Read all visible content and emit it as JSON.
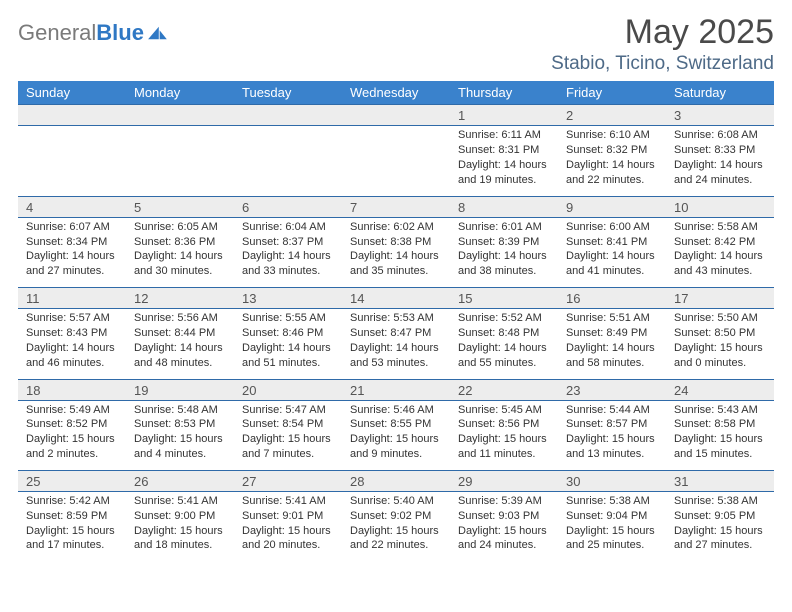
{
  "brand": {
    "general": "General",
    "blue": "Blue"
  },
  "title": "May 2025",
  "location": "Stabio, Ticino, Switzerland",
  "colors": {
    "header_bg": "#3a82cc",
    "header_text": "#ffffff",
    "daynum_bg": "#ededed",
    "row_divider": "#2f6aa8",
    "logo_gray": "#7a7a7a",
    "logo_blue": "#2f78c4",
    "location_color": "#4e6a87",
    "title_color": "#4a4a4a"
  },
  "fonts": {
    "body_family": "Arial",
    "detail_size_pt": 8,
    "title_size_pt": 26
  },
  "weekdays": [
    "Sunday",
    "Monday",
    "Tuesday",
    "Wednesday",
    "Thursday",
    "Friday",
    "Saturday"
  ],
  "weeks": [
    [
      null,
      null,
      null,
      null,
      {
        "d": "1",
        "sr": "6:11 AM",
        "ss": "8:31 PM",
        "dl": "14 hours and 19 minutes."
      },
      {
        "d": "2",
        "sr": "6:10 AM",
        "ss": "8:32 PM",
        "dl": "14 hours and 22 minutes."
      },
      {
        "d": "3",
        "sr": "6:08 AM",
        "ss": "8:33 PM",
        "dl": "14 hours and 24 minutes."
      }
    ],
    [
      {
        "d": "4",
        "sr": "6:07 AM",
        "ss": "8:34 PM",
        "dl": "14 hours and 27 minutes."
      },
      {
        "d": "5",
        "sr": "6:05 AM",
        "ss": "8:36 PM",
        "dl": "14 hours and 30 minutes."
      },
      {
        "d": "6",
        "sr": "6:04 AM",
        "ss": "8:37 PM",
        "dl": "14 hours and 33 minutes."
      },
      {
        "d": "7",
        "sr": "6:02 AM",
        "ss": "8:38 PM",
        "dl": "14 hours and 35 minutes."
      },
      {
        "d": "8",
        "sr": "6:01 AM",
        "ss": "8:39 PM",
        "dl": "14 hours and 38 minutes."
      },
      {
        "d": "9",
        "sr": "6:00 AM",
        "ss": "8:41 PM",
        "dl": "14 hours and 41 minutes."
      },
      {
        "d": "10",
        "sr": "5:58 AM",
        "ss": "8:42 PM",
        "dl": "14 hours and 43 minutes."
      }
    ],
    [
      {
        "d": "11",
        "sr": "5:57 AM",
        "ss": "8:43 PM",
        "dl": "14 hours and 46 minutes."
      },
      {
        "d": "12",
        "sr": "5:56 AM",
        "ss": "8:44 PM",
        "dl": "14 hours and 48 minutes."
      },
      {
        "d": "13",
        "sr": "5:55 AM",
        "ss": "8:46 PM",
        "dl": "14 hours and 51 minutes."
      },
      {
        "d": "14",
        "sr": "5:53 AM",
        "ss": "8:47 PM",
        "dl": "14 hours and 53 minutes."
      },
      {
        "d": "15",
        "sr": "5:52 AM",
        "ss": "8:48 PM",
        "dl": "14 hours and 55 minutes."
      },
      {
        "d": "16",
        "sr": "5:51 AM",
        "ss": "8:49 PM",
        "dl": "14 hours and 58 minutes."
      },
      {
        "d": "17",
        "sr": "5:50 AM",
        "ss": "8:50 PM",
        "dl": "15 hours and 0 minutes."
      }
    ],
    [
      {
        "d": "18",
        "sr": "5:49 AM",
        "ss": "8:52 PM",
        "dl": "15 hours and 2 minutes."
      },
      {
        "d": "19",
        "sr": "5:48 AM",
        "ss": "8:53 PM",
        "dl": "15 hours and 4 minutes."
      },
      {
        "d": "20",
        "sr": "5:47 AM",
        "ss": "8:54 PM",
        "dl": "15 hours and 7 minutes."
      },
      {
        "d": "21",
        "sr": "5:46 AM",
        "ss": "8:55 PM",
        "dl": "15 hours and 9 minutes."
      },
      {
        "d": "22",
        "sr": "5:45 AM",
        "ss": "8:56 PM",
        "dl": "15 hours and 11 minutes."
      },
      {
        "d": "23",
        "sr": "5:44 AM",
        "ss": "8:57 PM",
        "dl": "15 hours and 13 minutes."
      },
      {
        "d": "24",
        "sr": "5:43 AM",
        "ss": "8:58 PM",
        "dl": "15 hours and 15 minutes."
      }
    ],
    [
      {
        "d": "25",
        "sr": "5:42 AM",
        "ss": "8:59 PM",
        "dl": "15 hours and 17 minutes."
      },
      {
        "d": "26",
        "sr": "5:41 AM",
        "ss": "9:00 PM",
        "dl": "15 hours and 18 minutes."
      },
      {
        "d": "27",
        "sr": "5:41 AM",
        "ss": "9:01 PM",
        "dl": "15 hours and 20 minutes."
      },
      {
        "d": "28",
        "sr": "5:40 AM",
        "ss": "9:02 PM",
        "dl": "15 hours and 22 minutes."
      },
      {
        "d": "29",
        "sr": "5:39 AM",
        "ss": "9:03 PM",
        "dl": "15 hours and 24 minutes."
      },
      {
        "d": "30",
        "sr": "5:38 AM",
        "ss": "9:04 PM",
        "dl": "15 hours and 25 minutes."
      },
      {
        "d": "31",
        "sr": "5:38 AM",
        "ss": "9:05 PM",
        "dl": "15 hours and 27 minutes."
      }
    ]
  ],
  "labels": {
    "sunrise": "Sunrise: ",
    "sunset": "Sunset: ",
    "daylight": "Daylight: "
  }
}
